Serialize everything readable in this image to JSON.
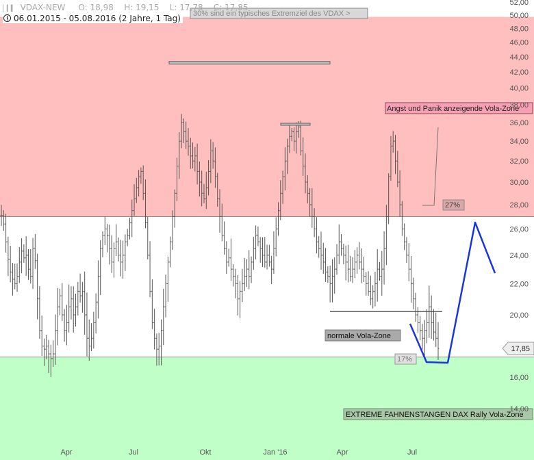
{
  "header": {
    "instrument": "VDAX-NEW",
    "open": "O: 18,98",
    "high": "H: 19,15",
    "low": "L: 17,78",
    "close": "C: 17,85",
    "range": "06.01.2015 - 05.08.2016 (2 Jahre, 1 Tag)"
  },
  "chart_data": {
    "type": "bar",
    "ylim": [
      13,
      52
    ],
    "y_ticks": [
      "14,00",
      "16,00",
      "20,00",
      "22,00",
      "24,00",
      "26,00",
      "28,00",
      "30,00",
      "32,00",
      "34,00",
      "36,00",
      "38,00",
      "40,00",
      "42,00",
      "44,00",
      "46,00",
      "48,00",
      "50,00",
      "52,00"
    ],
    "x_ticks": [
      "Apr",
      "Jul",
      "Okt",
      "Jan '16",
      "Apr",
      "Jul"
    ],
    "last_price": "17,85",
    "zones": [
      {
        "name": "Angst und Panik anzeigende Vola-Zone",
        "from": 27,
        "to": 52,
        "color": "#ffbfbf"
      },
      {
        "name": "normale Vola-Zone",
        "from": 17.3,
        "to": 27,
        "color": "#ffffff"
      },
      {
        "name": "EXTREME FAHNENSTANGEN DAX Rally Vola-Zone",
        "from": 13,
        "to": 17.3,
        "color": "#c0ffc8"
      }
    ],
    "annotations": {
      "top_note": "30% sind ein typisches Extremziel des VDAX >",
      "panic_zone": "Angst und Panik anzeigende Vola-Zone",
      "normal_zone": "normale Vola-Zone",
      "extreme_zone": "EXTREME FAHNENSTANGEN DAX Rally Vola-Zone",
      "level_27": "27%",
      "level_17": "17%"
    },
    "series": [
      {
        "values": [
          27.1,
          26.4,
          25.0,
          23.7,
          22.8,
          22.3,
          22.0,
          22.5,
          23.5,
          24.3,
          23.8,
          24.0,
          23.0,
          22.5,
          24.5,
          23.6,
          21.0,
          19.0,
          18.0,
          17.8,
          18.0,
          17.5,
          17.2,
          17.5,
          19.0,
          20.5,
          21.2,
          20.0,
          19.0,
          19.5,
          20.5,
          21.0,
          20.0,
          20.5,
          21.5,
          21.2,
          21.5,
          20.0,
          18.5,
          18.0,
          18.5,
          19.5,
          20.8,
          22.5,
          24.5,
          25.5,
          26.0,
          25.5,
          24.5,
          23.5,
          24.5,
          25.0,
          24.0,
          23.5,
          24.0,
          25.0,
          25.5,
          26.5,
          27.5,
          28.5,
          29.5,
          30.5,
          31.0,
          29.0,
          26.5,
          24.0,
          21.5,
          19.5,
          18.5,
          17.8,
          18.0,
          19.0,
          20.5,
          22.0,
          23.5,
          25.0,
          27.0,
          29.0,
          31.5,
          34.0,
          36.0,
          35.0,
          34.0,
          33.5,
          32.5,
          32.0,
          32.5,
          31.0,
          30.0,
          29.0,
          28.5,
          29.5,
          31.0,
          33.0,
          32.0,
          30.5,
          28.5,
          27.0,
          25.5,
          24.5,
          23.5,
          23.8,
          23.0,
          22.5,
          22.0,
          21.0,
          21.5,
          22.0,
          22.5,
          23.0,
          22.5,
          23.5,
          24.5,
          25.5,
          25.0,
          24.5,
          24.0,
          23.5,
          24.0,
          23.5,
          23.0,
          24.5,
          26.0,
          27.5,
          29.0,
          30.5,
          32.0,
          33.5,
          34.5,
          35.0,
          34.0,
          35.0,
          35.5,
          33.0,
          31.5,
          30.0,
          29.0,
          28.0,
          27.0,
          26.0,
          25.0,
          24.5,
          24.0,
          23.5,
          22.8,
          22.5,
          22.0,
          22.5,
          23.0,
          24.0,
          25.0,
          24.5,
          24.0,
          23.5,
          23.0,
          22.5,
          23.0,
          23.5,
          24.0,
          23.5,
          23.0,
          22.5,
          22.0,
          21.5,
          21.0,
          21.5,
          22.0,
          23.0,
          22.5,
          23.0,
          24.5,
          27.0,
          30.5,
          33.5,
          34.0,
          32.0,
          30.0,
          28.0,
          26.0,
          25.0,
          24.0,
          23.0,
          22.0,
          21.0,
          20.0,
          19.5,
          19.0,
          18.5,
          19.0,
          19.5,
          20.5,
          19.5,
          18.9,
          18.5,
          17.85
        ]
      }
    ]
  },
  "colors": {
    "panic": "#ffbfbf",
    "normal": "#ffffff",
    "extreme": "#c0ffc8",
    "bars": "#555555",
    "projection": "#1a35e0"
  }
}
